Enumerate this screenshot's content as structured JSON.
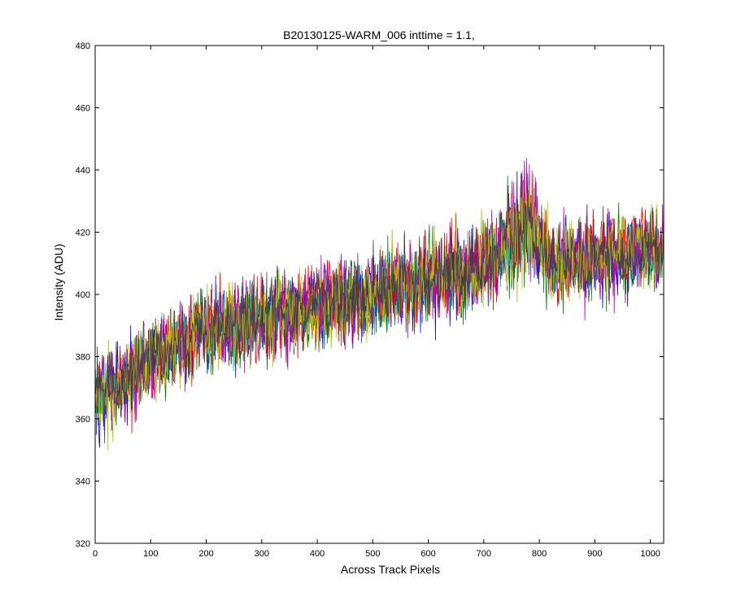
{
  "chart_data": {
    "type": "line",
    "title": "B20130125-WARM_006 inttime = 1.1,",
    "xlabel": "Across Track Pixels",
    "ylabel": "Intensity (ADU)",
    "xlim": [
      0,
      1024
    ],
    "ylim": [
      320,
      480
    ],
    "xticks": [
      0,
      100,
      200,
      300,
      400,
      500,
      600,
      700,
      800,
      900,
      1000
    ],
    "yticks": [
      320,
      340,
      360,
      380,
      400,
      420,
      440,
      460,
      480
    ],
    "grid": false,
    "legend": "none",
    "series": [
      {
        "color": "#0000ff",
        "trend": [
          [
            0,
            368
          ],
          [
            50,
            370
          ],
          [
            100,
            380
          ],
          [
            200,
            388
          ],
          [
            300,
            392
          ],
          [
            400,
            396
          ],
          [
            500,
            400
          ],
          [
            600,
            405
          ],
          [
            700,
            409
          ],
          [
            760,
            420
          ],
          [
            790,
            422
          ],
          [
            820,
            410
          ],
          [
            1024,
            415
          ]
        ],
        "noise": 12
      },
      {
        "color": "#008000",
        "trend": [
          [
            0,
            367
          ],
          [
            50,
            369
          ],
          [
            100,
            379
          ],
          [
            200,
            387
          ],
          [
            300,
            391
          ],
          [
            400,
            395
          ],
          [
            500,
            399
          ],
          [
            600,
            404
          ],
          [
            700,
            408
          ],
          [
            760,
            419
          ],
          [
            790,
            421
          ],
          [
            820,
            409
          ],
          [
            1024,
            414
          ]
        ],
        "noise": 12
      },
      {
        "color": "#ff0000",
        "trend": [
          [
            0,
            369
          ],
          [
            50,
            371
          ],
          [
            100,
            381
          ],
          [
            200,
            389
          ],
          [
            300,
            393
          ],
          [
            400,
            397
          ],
          [
            500,
            401
          ],
          [
            600,
            406
          ],
          [
            700,
            410
          ],
          [
            760,
            421
          ],
          [
            790,
            423
          ],
          [
            820,
            411
          ],
          [
            1024,
            416
          ]
        ],
        "noise": 12
      },
      {
        "color": "#00bfbf",
        "trend": [
          [
            0,
            368
          ],
          [
            50,
            370
          ],
          [
            100,
            380
          ],
          [
            200,
            388
          ],
          [
            300,
            392
          ],
          [
            400,
            396
          ],
          [
            500,
            400
          ],
          [
            600,
            405
          ],
          [
            700,
            409
          ],
          [
            760,
            420
          ],
          [
            790,
            422
          ],
          [
            820,
            410
          ],
          [
            1024,
            415
          ]
        ],
        "noise": 9
      },
      {
        "color": "#bf00bf",
        "trend": [
          [
            0,
            368
          ],
          [
            50,
            370
          ],
          [
            100,
            380
          ],
          [
            200,
            388
          ],
          [
            300,
            392
          ],
          [
            400,
            396
          ],
          [
            500,
            400
          ],
          [
            600,
            405
          ],
          [
            700,
            409
          ],
          [
            760,
            424
          ],
          [
            790,
            426
          ],
          [
            820,
            410
          ],
          [
            1024,
            415
          ]
        ],
        "noise": 12
      },
      {
        "color": "#bfbf00",
        "trend": [
          [
            0,
            368
          ],
          [
            50,
            370
          ],
          [
            100,
            380
          ],
          [
            200,
            388
          ],
          [
            300,
            392
          ],
          [
            400,
            396
          ],
          [
            500,
            400
          ],
          [
            600,
            405
          ],
          [
            700,
            409
          ],
          [
            760,
            422
          ],
          [
            790,
            424
          ],
          [
            820,
            410
          ],
          [
            1024,
            415
          ]
        ],
        "noise": 12
      },
      {
        "color": "#404040",
        "trend": [
          [
            0,
            368
          ],
          [
            50,
            370
          ],
          [
            100,
            380
          ],
          [
            200,
            388
          ],
          [
            300,
            392
          ],
          [
            400,
            396
          ],
          [
            500,
            400
          ],
          [
            600,
            405
          ],
          [
            700,
            409
          ],
          [
            760,
            420
          ],
          [
            790,
            422
          ],
          [
            820,
            410
          ],
          [
            1024,
            415
          ]
        ],
        "noise": 11
      }
    ]
  }
}
